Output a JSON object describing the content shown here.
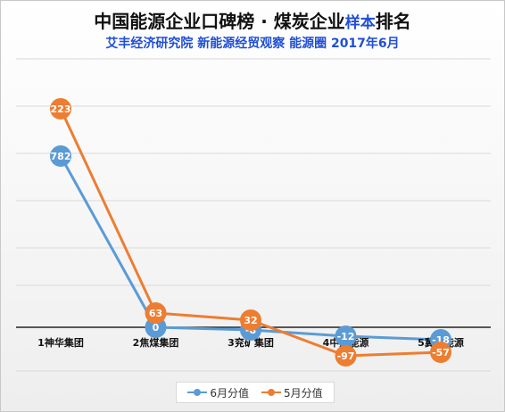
{
  "title_main": "中国能源企业口碑榜 · 煤炭企业",
  "title_highlight": "样本",
  "title_tail": "排名",
  "subtitle": "艾丰经济研究院 新能源经贸观察 能源圈 2017年6月",
  "chart_data": {
    "type": "line",
    "title": "中国能源企业口碑榜 · 煤炭企业样本排名",
    "subtitle": "艾丰经济研究院 新能源经贸观察 能源圈 2017年6月",
    "categories": [
      "1神华集团",
      "2焦煤集团",
      "3兖矿集团",
      "4中煤能源",
      "5冀中能源"
    ],
    "series": [
      {
        "name": "6月分值",
        "color": "#5b9bd5",
        "values": [
          782,
          0,
          -8,
          -12,
          -18
        ],
        "labels": [
          "782",
          "0",
          "-8",
          "-12",
          "-18"
        ]
      },
      {
        "name": "5月分值",
        "color": "#ed7d31",
        "values": [
          223,
          63,
          32,
          -97,
          -57
        ],
        "labels": [
          "223",
          "63",
          "32",
          "-97",
          "-57"
        ]
      }
    ],
    "grid": true,
    "legend": "bottom"
  },
  "legend": {
    "items": [
      {
        "label": "6月分值",
        "color": "#5b9bd5"
      },
      {
        "label": "5月分值",
        "color": "#ed7d31"
      }
    ]
  }
}
